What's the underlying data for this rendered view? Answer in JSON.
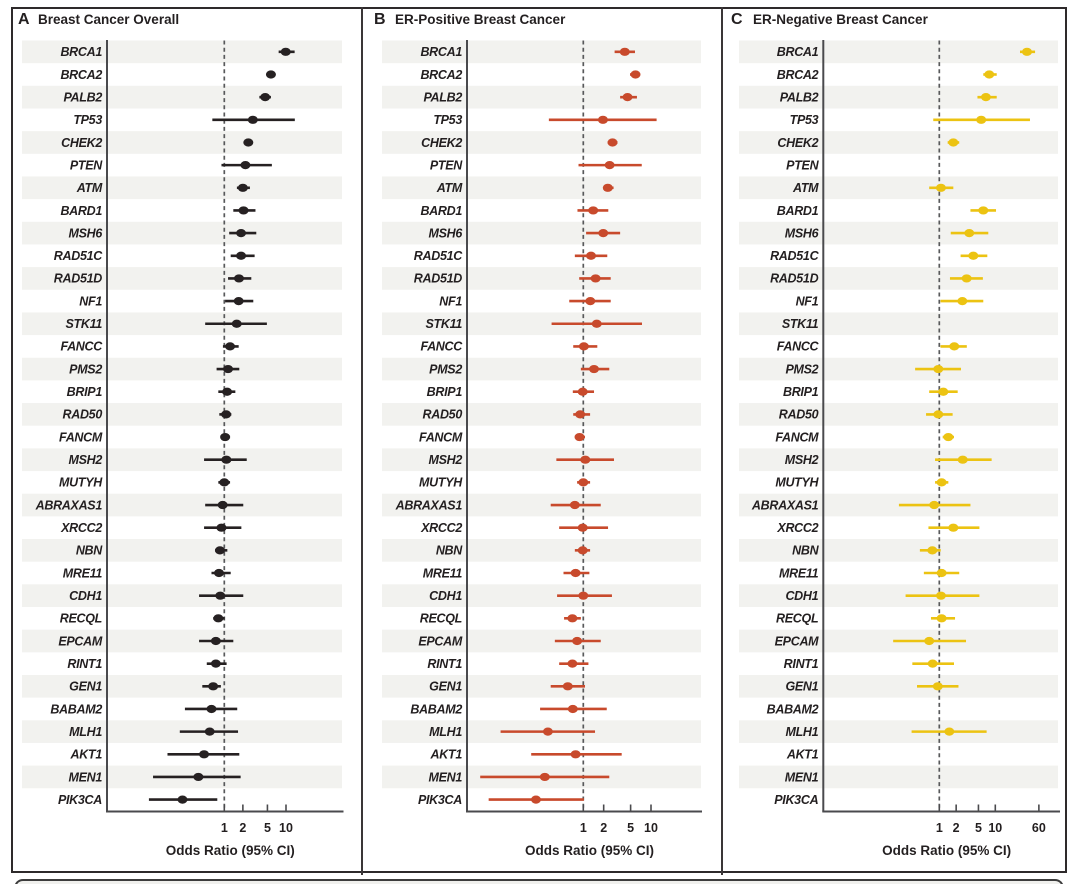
{
  "figure": {
    "type": "forest-plot-figure",
    "n_panels": 3,
    "colors": {
      "panel_a_marker": "#262122",
      "panel_b_marker": "#c84a2c",
      "panel_c_marker": "#ecc312",
      "row_band": "#f2f2ef",
      "axis_line": "#4a4a4d",
      "reference_line": "#58595b",
      "text": "#231f20",
      "frame": "#2e2a2b",
      "caption_fill": "#f0f0ed"
    }
  },
  "genes": [
    "BRCA1",
    "BRCA2",
    "PALB2",
    "TP53",
    "CHEK2",
    "PTEN",
    "ATM",
    "BARD1",
    "MSH6",
    "RAD51C",
    "RAD51D",
    "NF1",
    "STK11",
    "FANCC",
    "PMS2",
    "BRIP1",
    "RAD50",
    "FANCM",
    "MSH2",
    "MUTYH",
    "ABRAXAS1",
    "XRCC2",
    "NBN",
    "MRE11",
    "CDH1",
    "RECQL",
    "EPCAM",
    "RINT1",
    "GEN1",
    "BABAM2",
    "MLH1",
    "AKT1",
    "MEN1",
    "PIK3CA"
  ],
  "chart_data": [
    {
      "type": "scatter",
      "subtype": "forest",
      "panel_label": "A",
      "title": "Breast Cancer Overall",
      "xlabel": "Odds Ratio (95% CI)",
      "x_scale": "log",
      "x_ticks": [
        1,
        2,
        5,
        10
      ],
      "reference_line": 1,
      "marker_color": "#262122",
      "categories": [
        "BRCA1",
        "BRCA2",
        "PALB2",
        "TP53",
        "CHEK2",
        "PTEN",
        "ATM",
        "BARD1",
        "MSH6",
        "RAD51C",
        "RAD51D",
        "NF1",
        "STK11",
        "FANCC",
        "PMS2",
        "BRIP1",
        "RAD50",
        "FANCM",
        "MSH2",
        "MUTYH",
        "ABRAXAS1",
        "XRCC2",
        "NBN",
        "MRE11",
        "CDH1",
        "RECQL",
        "EPCAM",
        "RINT1",
        "GEN1",
        "BABAM2",
        "MLH1",
        "AKT1",
        "MEN1",
        "PIK3CA"
      ],
      "points": [
        [
          9.9,
          7.6,
          13.8
        ],
        [
          5.7,
          4.9,
          6.7
        ],
        [
          4.6,
          3.7,
          5.7
        ],
        [
          2.9,
          0.64,
          13.9
        ],
        [
          2.45,
          2.2,
          2.75
        ],
        [
          2.2,
          0.9,
          5.9
        ],
        [
          2.0,
          1.6,
          2.6
        ],
        [
          2.05,
          1.4,
          3.2
        ],
        [
          1.87,
          1.2,
          3.3
        ],
        [
          1.87,
          1.27,
          3.1
        ],
        [
          1.73,
          1.15,
          2.74
        ],
        [
          1.71,
          1.03,
          2.95
        ],
        [
          1.59,
          0.49,
          4.9
        ],
        [
          1.24,
          0.95,
          1.71
        ],
        [
          1.15,
          0.75,
          1.75
        ],
        [
          1.11,
          0.8,
          1.51
        ],
        [
          1.07,
          0.83,
          1.3
        ],
        [
          1.03,
          0.87,
          1.24
        ],
        [
          1.08,
          0.47,
          2.31
        ],
        [
          1.0,
          0.8,
          1.24
        ],
        [
          0.94,
          0.49,
          2.03
        ],
        [
          0.9,
          0.47,
          1.89
        ],
        [
          0.85,
          0.71,
          1.12
        ],
        [
          0.82,
          0.62,
          1.27
        ],
        [
          0.86,
          0.39,
          2.03
        ],
        [
          0.8,
          0.66,
          1.01
        ],
        [
          0.73,
          0.39,
          1.4
        ],
        [
          0.73,
          0.52,
          1.09
        ],
        [
          0.66,
          0.44,
          0.88
        ],
        [
          0.62,
          0.23,
          1.62
        ],
        [
          0.58,
          0.19,
          1.67
        ],
        [
          0.47,
          0.12,
          1.75
        ],
        [
          0.38,
          0.07,
          1.84
        ],
        [
          0.21,
          0.06,
          0.77
        ]
      ]
    },
    {
      "type": "scatter",
      "subtype": "forest",
      "panel_label": "B",
      "title": "ER-Positive Breast Cancer",
      "xlabel": "Odds Ratio (95% CI)",
      "x_scale": "log",
      "x_ticks": [
        1,
        2,
        5,
        10
      ],
      "reference_line": 1,
      "marker_color": "#c84a2c",
      "categories": [
        "BRCA1",
        "BRCA2",
        "PALB2",
        "TP53",
        "CHEK2",
        "PTEN",
        "ATM",
        "BARD1",
        "MSH6",
        "RAD51C",
        "RAD51D",
        "NF1",
        "STK11",
        "FANCC",
        "PMS2",
        "BRIP1",
        "RAD50",
        "FANCM",
        "MSH2",
        "MUTYH",
        "ABRAXAS1",
        "XRCC2",
        "NBN",
        "MRE11",
        "CDH1",
        "RECQL",
        "EPCAM",
        "RINT1",
        "GEN1",
        "BABAM2",
        "MLH1",
        "AKT1",
        "MEN1",
        "PIK3CA"
      ],
      "points": [
        [
          4.1,
          2.9,
          5.8
        ],
        [
          5.9,
          4.9,
          6.9
        ],
        [
          4.5,
          3.5,
          6.2
        ],
        [
          1.95,
          0.31,
          12.1
        ],
        [
          2.7,
          2.3,
          3.2
        ],
        [
          2.45,
          0.85,
          7.3
        ],
        [
          2.3,
          2.0,
          2.8
        ],
        [
          1.4,
          0.82,
          2.34
        ],
        [
          1.97,
          1.1,
          3.5
        ],
        [
          1.3,
          0.75,
          2.26
        ],
        [
          1.52,
          0.87,
          2.54
        ],
        [
          1.27,
          0.62,
          2.54
        ],
        [
          1.58,
          0.34,
          7.36
        ],
        [
          1.02,
          0.71,
          1.61
        ],
        [
          1.44,
          0.92,
          2.42
        ],
        [
          0.98,
          0.7,
          1.44
        ],
        [
          0.9,
          0.71,
          1.26
        ],
        [
          0.88,
          0.75,
          1.06
        ],
        [
          1.07,
          0.4,
          2.84
        ],
        [
          1.0,
          0.81,
          1.26
        ],
        [
          0.75,
          0.33,
          1.81
        ],
        [
          0.98,
          0.44,
          2.32
        ],
        [
          0.98,
          0.75,
          1.26
        ],
        [
          0.77,
          0.51,
          1.23
        ],
        [
          1.0,
          0.41,
          2.65
        ],
        [
          0.69,
          0.52,
          0.92
        ],
        [
          0.81,
          0.38,
          1.81
        ],
        [
          0.69,
          0.44,
          1.19
        ],
        [
          0.59,
          0.33,
          1.06
        ],
        [
          0.7,
          0.23,
          2.22
        ],
        [
          0.3,
          0.06,
          1.49
        ],
        [
          0.77,
          0.17,
          3.69
        ],
        [
          0.27,
          0.03,
          2.42
        ],
        [
          0.2,
          0.04,
          1.02
        ]
      ]
    },
    {
      "type": "scatter",
      "subtype": "forest",
      "panel_label": "C",
      "title": "ER-Negative Breast Cancer",
      "xlabel": "Odds Ratio (95% CI)",
      "x_scale": "log",
      "x_ticks": [
        1,
        2,
        5,
        10,
        60
      ],
      "reference_line": 1,
      "marker_color": "#ecc312",
      "categories": [
        "BRCA1",
        "BRCA2",
        "PALB2",
        "TP53",
        "CHEK2",
        "PTEN",
        "ATM",
        "BARD1",
        "MSH6",
        "RAD51C",
        "RAD51D",
        "NF1",
        "STK11",
        "FANCC",
        "PMS2",
        "BRIP1",
        "RAD50",
        "FANCM",
        "MSH2",
        "MUTYH",
        "ABRAXAS1",
        "XRCC2",
        "NBN",
        "MRE11",
        "CDH1",
        "RECQL",
        "EPCAM",
        "RINT1",
        "GEN1",
        "BABAM2",
        "MLH1",
        "AKT1",
        "MEN1",
        "PIK3CA"
      ],
      "points": [
        [
          36.8,
          27.6,
          51.3
        ],
        [
          7.8,
          6.1,
          10.6
        ],
        [
          6.8,
          4.8,
          10.6
        ],
        [
          5.6,
          0.78,
          41.6
        ],
        [
          1.78,
          1.41,
          2.27
        ],
        null,
        [
          1.07,
          0.66,
          1.78
        ],
        [
          6.1,
          3.6,
          10.3
        ],
        [
          3.43,
          1.6,
          7.5
        ],
        [
          4.05,
          2.4,
          7.2
        ],
        [
          3.08,
          1.55,
          6.0
        ],
        [
          2.58,
          1.05,
          6.1
        ],
        null,
        [
          1.85,
          1.05,
          3.1
        ],
        [
          0.96,
          0.37,
          2.44
        ],
        [
          1.18,
          0.66,
          2.13
        ],
        [
          0.96,
          0.58,
          1.73
        ],
        [
          1.45,
          1.15,
          1.83
        ],
        [
          2.62,
          0.84,
          8.6
        ],
        [
          1.1,
          0.84,
          1.45
        ],
        [
          0.81,
          0.19,
          3.6
        ],
        [
          1.78,
          0.64,
          5.2
        ],
        [
          0.75,
          0.45,
          1.06
        ],
        [
          1.1,
          0.53,
          2.27
        ],
        [
          1.07,
          0.25,
          5.2
        ],
        [
          1.1,
          0.71,
          1.91
        ],
        [
          0.66,
          0.15,
          3.0
        ],
        [
          0.76,
          0.33,
          1.83
        ],
        [
          0.94,
          0.4,
          2.2
        ],
        null,
        [
          1.51,
          0.32,
          7.0
        ],
        null,
        null,
        null
      ]
    }
  ]
}
